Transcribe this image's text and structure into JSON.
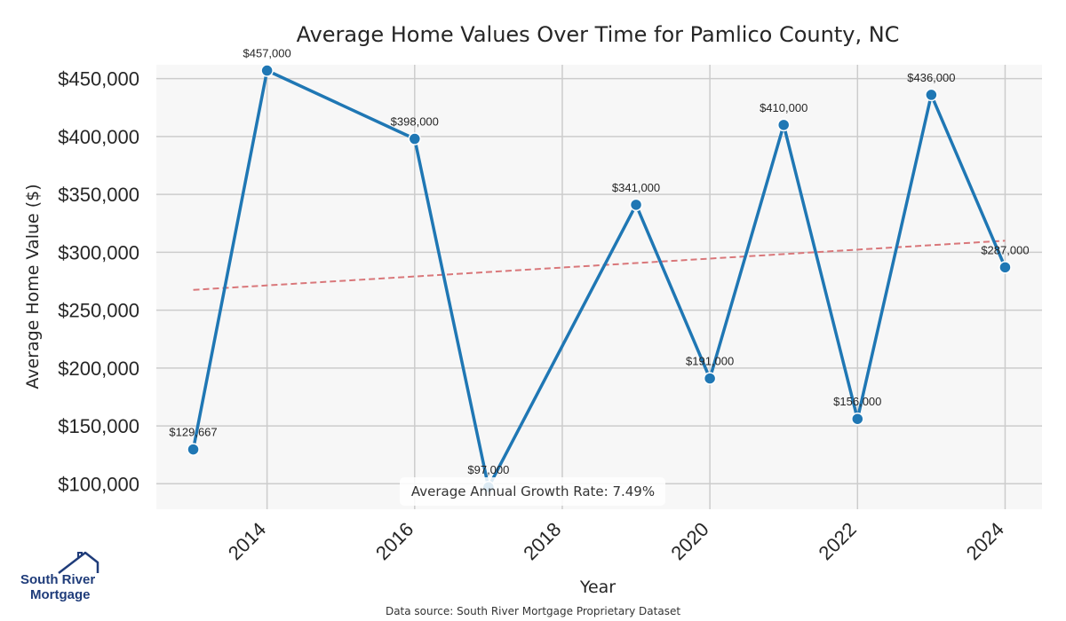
{
  "chart_data": {
    "type": "line",
    "title": "Average Home Values Over Time for Pamlico County, NC",
    "xlabel": "Year",
    "ylabel": "Average Home Value ($)",
    "xlim": [
      2012.5,
      2024.5
    ],
    "ylim": [
      78000,
      462000
    ],
    "x_ticks": [
      2014,
      2016,
      2018,
      2020,
      2022,
      2024
    ],
    "x_tick_labels": [
      "2014",
      "2016",
      "2018",
      "2020",
      "2022",
      "2024"
    ],
    "y_ticks": [
      100000,
      150000,
      200000,
      250000,
      300000,
      350000,
      400000,
      450000
    ],
    "y_tick_labels": [
      "$100,000",
      "$150,000",
      "$200,000",
      "$250,000",
      "$300,000",
      "$350,000",
      "$400,000",
      "$450,000"
    ],
    "grid": true,
    "series": [
      {
        "color": "#1f77b4",
        "x": [
          2013,
          2014,
          2016,
          2017,
          2019,
          2020,
          2021,
          2022,
          2023,
          2024
        ],
        "y": [
          129667,
          457000,
          398000,
          97000,
          341000,
          191000,
          410000,
          156000,
          436000,
          287000
        ],
        "labels": [
          "$129,667",
          "$457,000",
          "$398,000",
          "$97,000",
          "$341,000",
          "$191,000",
          "$410,000",
          "$156,000",
          "$436,000",
          "$287,000"
        ]
      }
    ],
    "trend": {
      "color": "#d9777a",
      "x": [
        2013,
        2024
      ],
      "y": [
        267500,
        310000
      ]
    },
    "annotation": "Average Annual Growth Rate: 7.49%",
    "source": "Data source: South River Mortgage Proprietary Dataset"
  },
  "logo": {
    "line1": "South River",
    "line2": "Mortgage",
    "color": "#1f3c7a"
  }
}
